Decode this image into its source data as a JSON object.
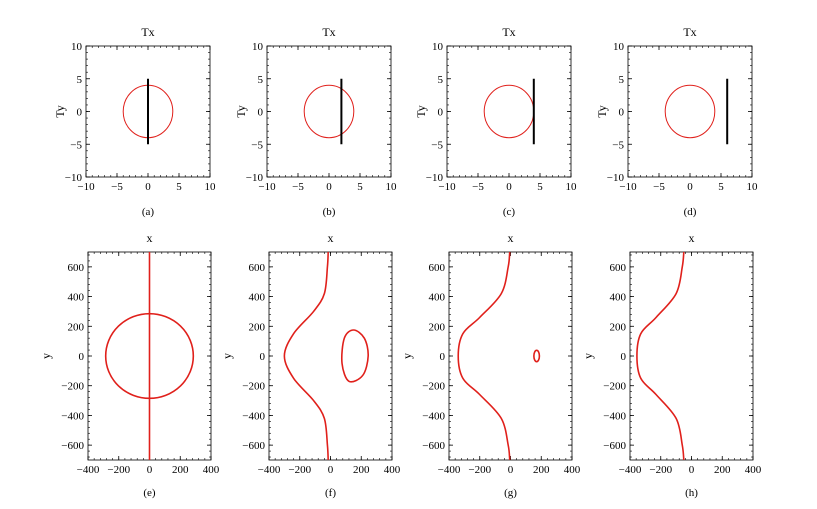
{
  "chart_data": [
    {
      "type": "line",
      "caption": "(a)",
      "title": "Tx",
      "xlabel": "",
      "ylabel": "Ty",
      "xlim": [
        -10,
        10
      ],
      "ylim": [
        -10,
        10
      ],
      "xticks": [
        -10,
        -5,
        0,
        5,
        10
      ],
      "yticks": [
        -10,
        -5,
        0,
        5,
        10
      ],
      "series": [
        {
          "kind": "circle",
          "cx": 0,
          "cy": 0,
          "r": 4,
          "color": "#e0201b"
        },
        {
          "kind": "segment",
          "x": [
            0,
            0
          ],
          "y": [
            -5,
            5
          ],
          "color": "#000000"
        }
      ]
    },
    {
      "type": "line",
      "caption": "(b)",
      "title": "Tx",
      "xlabel": "",
      "ylabel": "Ty",
      "xlim": [
        -10,
        10
      ],
      "ylim": [
        -10,
        10
      ],
      "xticks": [
        -10,
        -5,
        0,
        5,
        10
      ],
      "yticks": [
        -10,
        -5,
        0,
        5,
        10
      ],
      "series": [
        {
          "kind": "circle",
          "cx": 0,
          "cy": 0,
          "r": 4,
          "color": "#e0201b"
        },
        {
          "kind": "segment",
          "x": [
            2,
            2
          ],
          "y": [
            -5,
            5
          ],
          "color": "#000000"
        }
      ]
    },
    {
      "type": "line",
      "caption": "(c)",
      "title": "Tx",
      "xlabel": "",
      "ylabel": "Ty",
      "xlim": [
        -10,
        10
      ],
      "ylim": [
        -10,
        10
      ],
      "xticks": [
        -10,
        -5,
        0,
        5,
        10
      ],
      "yticks": [
        -10,
        -5,
        0,
        5,
        10
      ],
      "series": [
        {
          "kind": "circle",
          "cx": 0,
          "cy": 0,
          "r": 4,
          "color": "#e0201b"
        },
        {
          "kind": "segment",
          "x": [
            4,
            4
          ],
          "y": [
            -5,
            5
          ],
          "color": "#000000"
        }
      ]
    },
    {
      "type": "line",
      "caption": "(d)",
      "title": "Tx",
      "xlabel": "",
      "ylabel": "Ty",
      "xlim": [
        -10,
        10
      ],
      "ylim": [
        -10,
        10
      ],
      "xticks": [
        -10,
        -5,
        0,
        5,
        10
      ],
      "yticks": [
        -10,
        -5,
        0,
        5,
        10
      ],
      "series": [
        {
          "kind": "circle",
          "cx": 0,
          "cy": 0,
          "r": 4,
          "color": "#e0201b"
        },
        {
          "kind": "segment",
          "x": [
            6,
            6
          ],
          "y": [
            -5,
            5
          ],
          "color": "#000000"
        }
      ]
    },
    {
      "type": "line",
      "caption": "(e)",
      "title": "x",
      "xlabel": "",
      "ylabel": "y",
      "xlim": [
        -400,
        400
      ],
      "ylim": [
        -700,
        700
      ],
      "xticks": [
        -400,
        -200,
        0,
        200,
        400
      ],
      "yticks": [
        -600,
        -400,
        -200,
        0,
        200,
        400,
        600
      ],
      "series": [
        {
          "kind": "circle",
          "cx": 0,
          "cy": 0,
          "r": 285,
          "color": "#e0201b"
        },
        {
          "kind": "polyline",
          "x": [
            0,
            0
          ],
          "y": [
            -700,
            700
          ],
          "color": "#e0201b"
        }
      ]
    },
    {
      "type": "line",
      "caption": "(f)",
      "title": "x",
      "xlabel": "",
      "ylabel": "y",
      "xlim": [
        -400,
        400
      ],
      "ylim": [
        -700,
        700
      ],
      "xticks": [
        -400,
        -200,
        0,
        200,
        400
      ],
      "yticks": [
        -600,
        -400,
        -200,
        0,
        200,
        400,
        600
      ],
      "series": [
        {
          "kind": "polyline",
          "color": "#e0201b",
          "x": [
            -15,
            -20,
            -40,
            -110,
            -240,
            -300,
            -240,
            -110,
            -40,
            -20,
            -15
          ],
          "y": [
            -700,
            -600,
            -420,
            -300,
            -150,
            0,
            150,
            300,
            420,
            600,
            700
          ]
        },
        {
          "kind": "polyline",
          "color": "#e0201b",
          "closed": true,
          "x": [
            150,
            220,
            245,
            210,
            120,
            75,
            90,
            150
          ],
          "y": [
            175,
            120,
            0,
            -130,
            -170,
            -50,
            120,
            175
          ]
        }
      ]
    },
    {
      "type": "line",
      "caption": "(g)",
      "title": "x",
      "xlabel": "",
      "ylabel": "y",
      "xlim": [
        -400,
        400
      ],
      "ylim": [
        -700,
        700
      ],
      "xticks": [
        -400,
        -200,
        0,
        200,
        400
      ],
      "yticks": [
        -600,
        -400,
        -200,
        0,
        200,
        400,
        600
      ],
      "series": [
        {
          "kind": "polyline",
          "color": "#e0201b",
          "x": [
            -5,
            -15,
            -60,
            -200,
            -310,
            -340,
            -310,
            -200,
            -60,
            -15,
            -5
          ],
          "y": [
            -700,
            -600,
            -420,
            -260,
            -150,
            0,
            150,
            260,
            420,
            600,
            700
          ]
        },
        {
          "kind": "ellipse",
          "cx": 170,
          "cy": 0,
          "rx": 18,
          "ry": 38,
          "color": "#e0201b"
        }
      ]
    },
    {
      "type": "line",
      "caption": "(h)",
      "title": "x",
      "xlabel": "",
      "ylabel": "y",
      "xlim": [
        -400,
        400
      ],
      "ylim": [
        -700,
        700
      ],
      "xticks": [
        -400,
        -200,
        0,
        200,
        400
      ],
      "yticks": [
        -600,
        -400,
        -200,
        0,
        200,
        400,
        600
      ],
      "series": [
        {
          "kind": "polyline",
          "color": "#e0201b",
          "x": [
            -50,
            -60,
            -100,
            -230,
            -330,
            -355,
            -330,
            -230,
            -100,
            -60,
            -50
          ],
          "y": [
            -700,
            -600,
            -420,
            -260,
            -150,
            0,
            150,
            260,
            420,
            600,
            700
          ]
        }
      ]
    }
  ]
}
